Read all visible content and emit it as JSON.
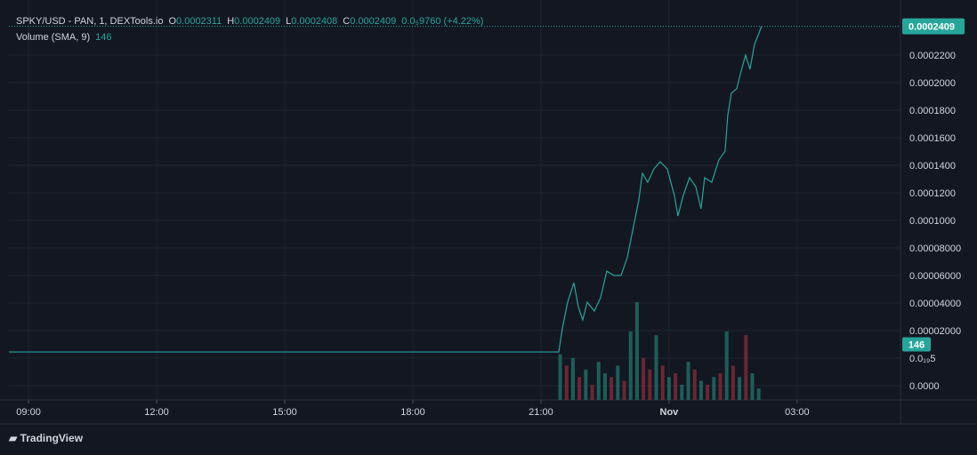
{
  "chart_data": {
    "type": "line",
    "title": "SPKY/USD - PAN, 1, DEXTools.io",
    "ohlc": [
      {
        "label": "O",
        "value": 0.0002311
      },
      {
        "label": "H",
        "value": 0.0002409
      },
      {
        "label": "L",
        "value": 0.0002408
      },
      {
        "label": "C",
        "value": 0.0002409
      }
    ],
    "change": "0.0₅9760 (+4.22%)",
    "brand": "TradingView",
    "grid": true,
    "xlim": [
      8.54,
      29.42
    ],
    "ylim": [
      -3.03e-05,
      0.0002458
    ],
    "y2lim": [
      0,
      1000
    ],
    "xticks": [
      {
        "value": 9,
        "label": "09:00"
      },
      {
        "value": 12,
        "label": "12:00"
      },
      {
        "value": 15,
        "label": "15:00"
      },
      {
        "value": 18,
        "label": "18:00"
      },
      {
        "value": 21,
        "label": "21:00"
      },
      {
        "value": 24,
        "label": "Nov"
      },
      {
        "value": 27,
        "label": "03:00"
      }
    ],
    "yticks": [
      {
        "value": 0.00022,
        "label": "0.0002200"
      },
      {
        "value": 0.0002,
        "label": "0.0002000"
      },
      {
        "value": 0.00018,
        "label": "0.0001800"
      },
      {
        "value": 0.00016,
        "label": "0.0001600"
      },
      {
        "value": 0.00014,
        "label": "0.0001400"
      },
      {
        "value": 0.00012,
        "label": "0.0001200"
      },
      {
        "value": 0.0001,
        "label": "0.0001000"
      },
      {
        "value": 8e-05,
        "label": "0.00008000"
      },
      {
        "value": 6e-05,
        "label": "0.00006000"
      },
      {
        "value": 4e-05,
        "label": "0.00004000"
      },
      {
        "value": 2e-05,
        "label": "0.00002000"
      },
      {
        "value": 5e-20,
        "label": "0.0₁₉5"
      },
      {
        "value": -2e-05,
        "label": "0.0000"
      }
    ],
    "series": [
      {
        "type": "line",
        "color": "#26a69a",
        "x": [
          8.54,
          21.417,
          21.5,
          21.625,
          21.771,
          21.875,
          21.979,
          22.083,
          22.25,
          22.396,
          22.542,
          22.708,
          22.875,
          23.021,
          23.167,
          23.292,
          23.375,
          23.5,
          23.646,
          23.792,
          23.958,
          24.125,
          24.208,
          24.333,
          24.479,
          24.625,
          24.75,
          24.833,
          25,
          25.167,
          25.313,
          25.375,
          25.458,
          25.583,
          25.688,
          25.792,
          25.896,
          26,
          26.083,
          26.167
        ],
        "values": [
          4.5e-06,
          4.5e-06,
          2.13e-05,
          4.06e-05,
          5.48e-05,
          3.74e-05,
          2.77e-05,
          4.06e-05,
          3.42e-05,
          4.39e-05,
          6.32e-05,
          6e-05,
          6e-05,
          7.29e-05,
          9.55e-05,
          0.0001148,
          0.0001342,
          0.0001277,
          0.0001374,
          0.0001426,
          0.0001374,
          0.0001181,
          0.0001032,
          0.0001181,
          0.000131,
          0.0001245,
          0.0001084,
          0.000131,
          0.0001277,
          0.0001439,
          0.0001503,
          0.0001761,
          0.0001923,
          0.0001955,
          0.0002084,
          0.00022,
          0.0002097,
          0.0002277,
          0.0002342,
          0.0002409
        ]
      },
      {
        "type": "bar",
        "axis": "y2",
        "name": "Volume (SMA, 9)",
        "sma": 146,
        "color": "#26a69a",
        "x": [
          21.45,
          21.6,
          21.75,
          21.9,
          22.05,
          22.2,
          22.35,
          22.5,
          22.65,
          22.8,
          22.95,
          23.1,
          23.25,
          23.4,
          23.55,
          23.7,
          23.85,
          24.0,
          24.15,
          24.3,
          24.45,
          24.6,
          24.75,
          24.9,
          25.05,
          25.2,
          25.35,
          25.5,
          25.65,
          25.8,
          25.95,
          26.1
        ],
        "values": [
          120,
          90,
          110,
          60,
          80,
          40,
          100,
          70,
          60,
          90,
          50,
          180,
          257,
          110,
          80,
          170,
          90,
          60,
          70,
          40,
          100,
          80,
          50,
          40,
          60,
          70,
          180,
          90,
          60,
          170,
          70,
          30
        ],
        "colors": [
          "#1f6b63",
          "#7a2a36",
          "#1f6b63",
          "#7a2a36",
          "#1f6b63",
          "#7a2a36",
          "#1f6b63",
          "#1f6b63",
          "#7a2a36",
          "#1f6b63",
          "#7a2a36",
          "#1f6b63",
          "#1f6b63",
          "#7a2a36",
          "#7a2a36",
          "#1f6b63",
          "#7a2a36",
          "#1f6b63",
          "#7a2a36",
          "#1f6b63",
          "#1f6b63",
          "#7a2a36",
          "#1f6b63",
          "#7a2a36",
          "#1f6b63",
          "#7a2a36",
          "#1f6b63",
          "#7a2a36",
          "#1f6b63",
          "#7a2a36",
          "#1f6b63",
          "#1f6b63"
        ]
      }
    ]
  }
}
